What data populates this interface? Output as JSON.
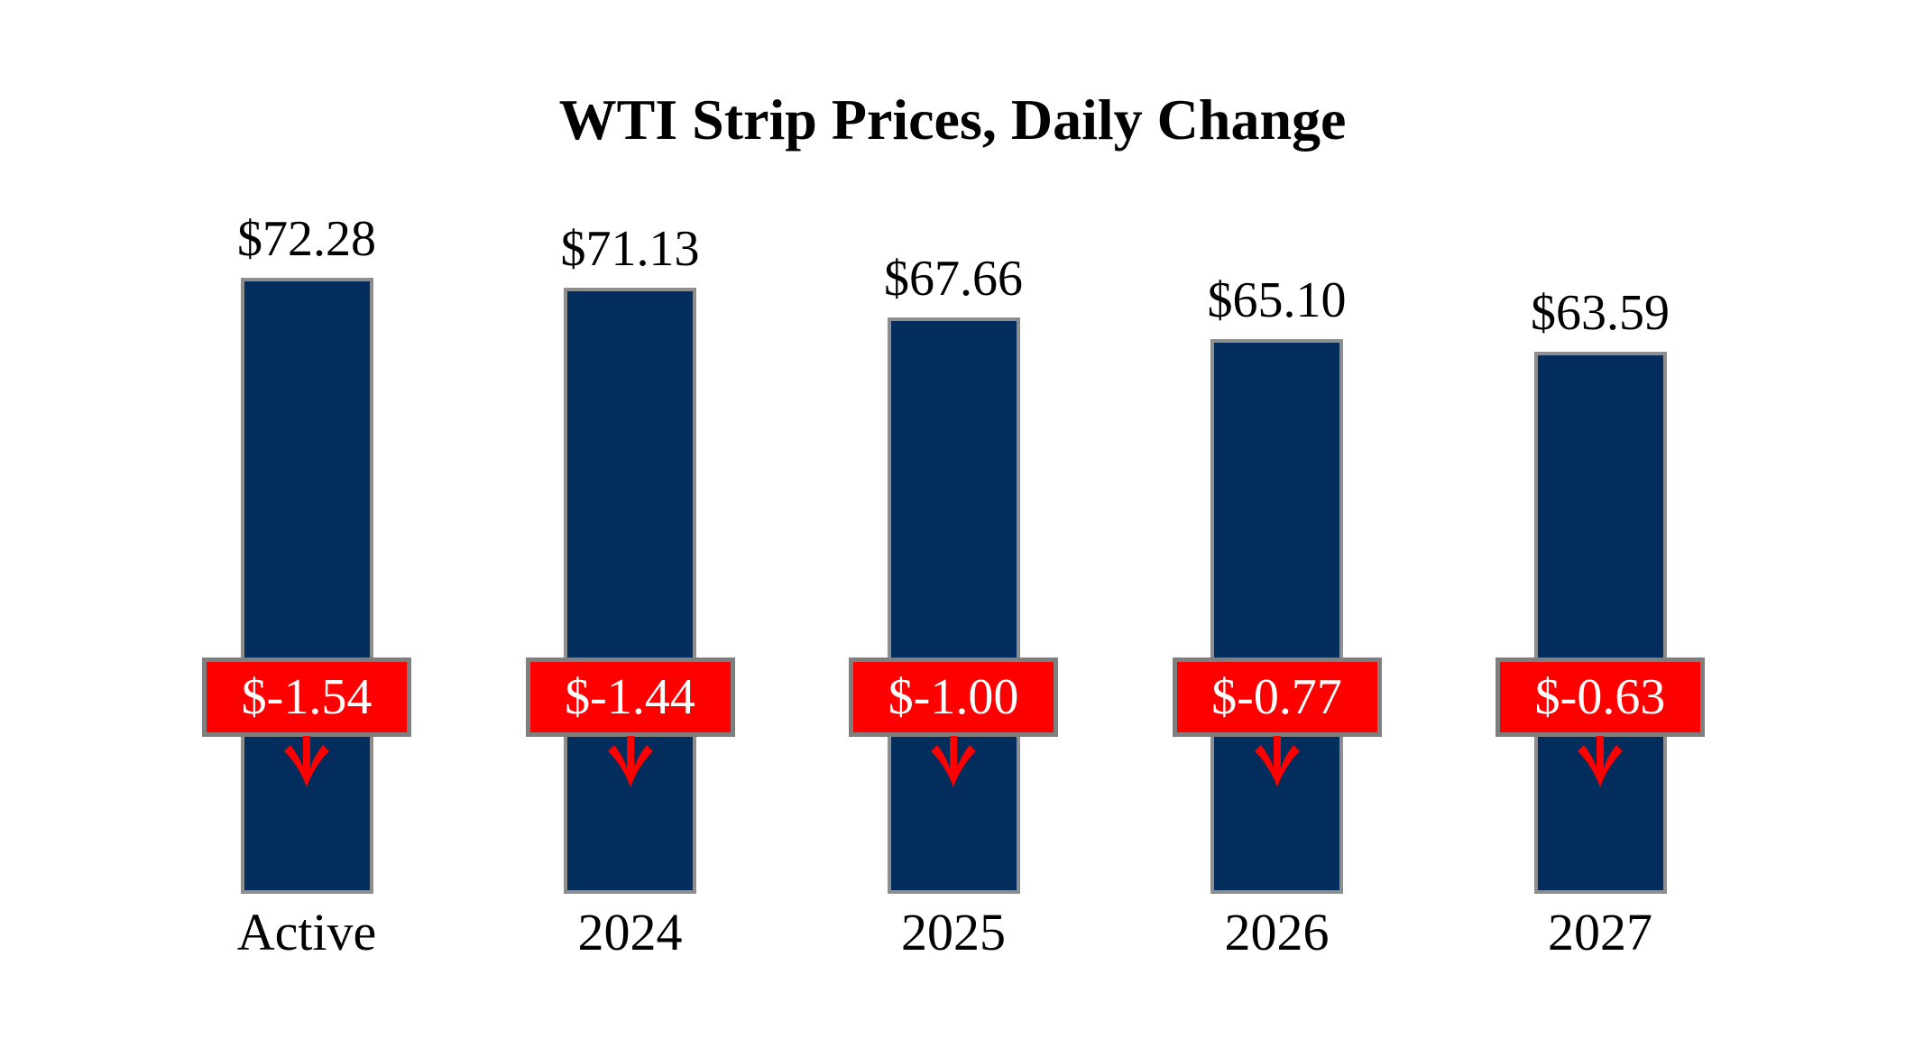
{
  "chart_data": {
    "type": "bar",
    "title": "WTI Strip Prices, Daily Change",
    "categories": [
      "Active",
      "2024",
      "2025",
      "2026",
      "2027"
    ],
    "series": [
      {
        "name": "Strip Price",
        "values": [
          72.28,
          71.13,
          67.66,
          65.1,
          63.59
        ],
        "labels": [
          "$72.28",
          "$71.13",
          "$67.66",
          "$65.10",
          "$63.59"
        ]
      },
      {
        "name": "Daily Change",
        "values": [
          -1.54,
          -1.44,
          -1.0,
          -0.77,
          -0.63
        ],
        "labels": [
          "$-1.54",
          "$-1.44",
          "$-1.00",
          "$-0.77",
          "$-0.63"
        ]
      }
    ],
    "ylabel": "",
    "xlabel": "",
    "ylim": [
      0,
      75
    ],
    "grid": false,
    "legend": "none",
    "axes_visible": false,
    "colors": {
      "bar_fill": "#032d5c",
      "bar_border": "#8e8e8e",
      "change_fill": "#ff0000",
      "change_border": "#7f7f7f",
      "change_text": "#ffffff",
      "label_text": "#000000",
      "arrow": "#ff0000",
      "background": "#ffffff"
    }
  }
}
